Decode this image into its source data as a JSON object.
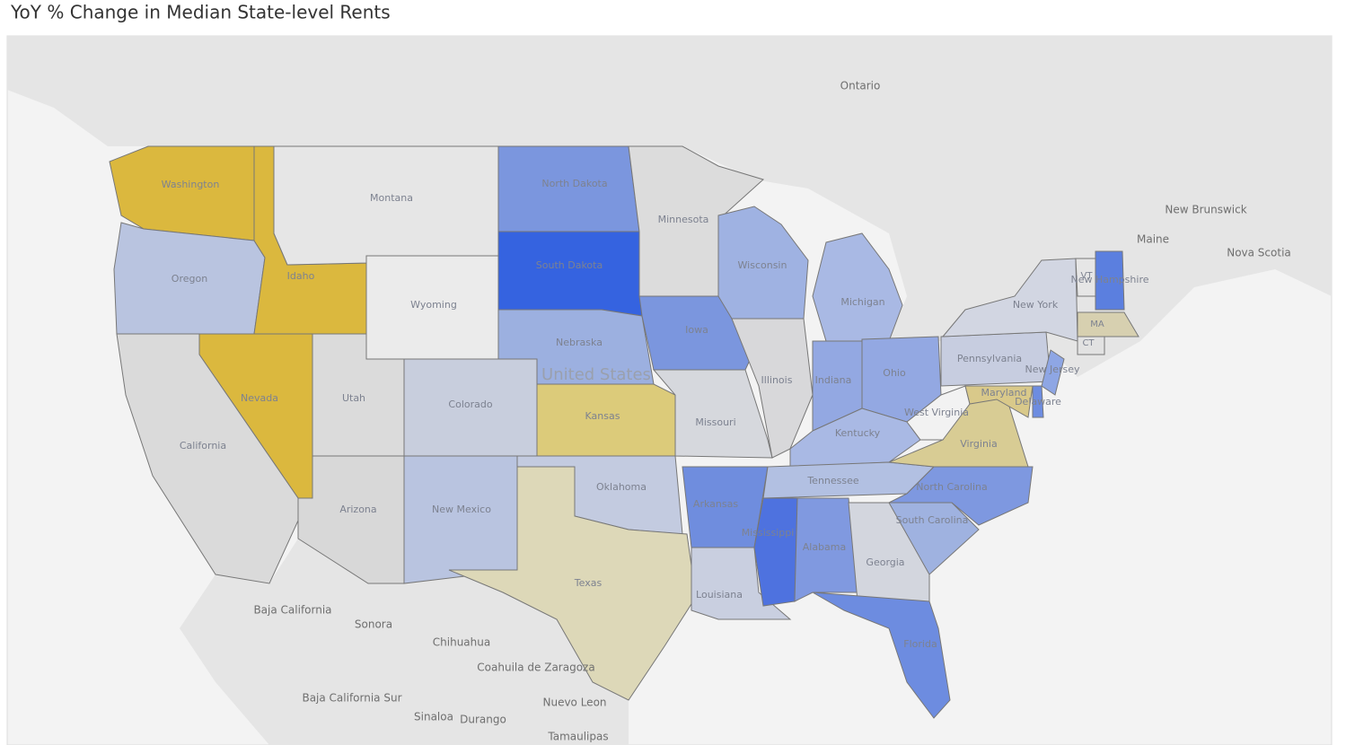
{
  "title": "YoY % Change in Median State-level Rents",
  "country_label": "United States",
  "regions": [
    "Ontario",
    "Maine",
    "New Brunswick",
    "Nova Scotia",
    "Baja California",
    "Sonora",
    "Chihuahua",
    "Coahuila de Zaragoza",
    "Nuevo Leon",
    "Baja California Sur",
    "Sinaloa",
    "Durango",
    "Tamaulipas"
  ],
  "states": [
    {
      "label": "Washington",
      "color": "#dbb83e"
    },
    {
      "label": "Oregon",
      "color": "#b9c4e0"
    },
    {
      "label": "Idaho",
      "color": "#dbb83e"
    },
    {
      "label": "Montana",
      "color": "#e6e6e6"
    },
    {
      "label": "Wyoming",
      "color": "#ebebeb"
    },
    {
      "label": "North Dakota",
      "color": "#7b96de"
    },
    {
      "label": "South Dakota",
      "color": "#3563e0"
    },
    {
      "label": "Nebraska",
      "color": "#9cb0e0"
    },
    {
      "label": "Kansas",
      "color": "#dccb7a"
    },
    {
      "label": "Nevada",
      "color": "#dbb83e"
    },
    {
      "label": "California",
      "color": "#dadada"
    },
    {
      "label": "Utah",
      "color": "#dbdbdb"
    },
    {
      "label": "Colorado",
      "color": "#c8cedd"
    },
    {
      "label": "Arizona",
      "color": "#d8d8d8"
    },
    {
      "label": "New Mexico",
      "color": "#b9c4e0"
    },
    {
      "label": "Oklahoma",
      "color": "#c3cbe0"
    },
    {
      "label": "Texas",
      "color": "#ddd8b8"
    },
    {
      "label": "Minnesota",
      "color": "#dcdcdc"
    },
    {
      "label": "Iowa",
      "color": "#7b96de"
    },
    {
      "label": "Missouri",
      "color": "#d6d8dd"
    },
    {
      "label": "Arkansas",
      "color": "#6f8dde"
    },
    {
      "label": "Louisiana",
      "color": "#c9cfe0"
    },
    {
      "label": "Wisconsin",
      "color": "#9fb2e2"
    },
    {
      "label": "Illinois",
      "color": "#d8d8da"
    },
    {
      "label": "Michigan",
      "color": "#a9b9e4"
    },
    {
      "label": "Indiana",
      "color": "#93a8e2"
    },
    {
      "label": "Ohio",
      "color": "#93a8e2"
    },
    {
      "label": "Kentucky",
      "color": "#a9b9e4"
    },
    {
      "label": "Tennessee",
      "color": "#b2c0e2"
    },
    {
      "label": "Mississippi",
      "color": "#4e72df"
    },
    {
      "label": "Alabama",
      "color": "#8099e0"
    },
    {
      "label": "Georgia",
      "color": "#d3d6de"
    },
    {
      "label": "Florida",
      "color": "#6d8ce0"
    },
    {
      "label": "South Carolina",
      "color": "#9fb2e0"
    },
    {
      "label": "North Carolina",
      "color": "#7e98e0"
    },
    {
      "label": "Virginia",
      "color": "#d8cc94"
    },
    {
      "label": "West Virginia",
      "color": "#f2f2f2"
    },
    {
      "label": "Pennsylvania",
      "color": "#c7cde0"
    },
    {
      "label": "New York",
      "color": "#d2d6e2"
    },
    {
      "label": "Maryland",
      "color": "#d9c98a"
    },
    {
      "label": "New Jersey",
      "color": "#8ea6e4"
    },
    {
      "label": "Delaware",
      "color": "#6d8ce0"
    },
    {
      "label": "VT",
      "color": "#e6e6e6"
    },
    {
      "label": "New Hampshire",
      "color": "#5b7fdf"
    },
    {
      "label": "MA",
      "color": "#d7d0b0"
    },
    {
      "label": "CT",
      "color": "#e2e2e2"
    }
  ]
}
